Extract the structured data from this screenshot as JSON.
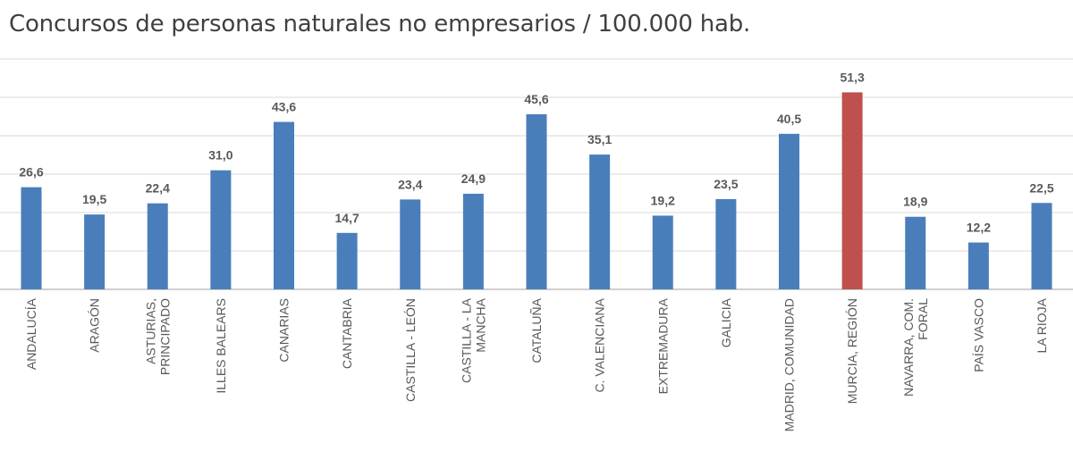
{
  "chart_data": {
    "type": "bar",
    "title": "Concursos de personas naturales no empresarios / 100.000 hab.",
    "categories": [
      [
        "ANDALUCÍA"
      ],
      [
        "ARAGÓN"
      ],
      [
        "ASTURIAS,",
        "PRINCIPADO"
      ],
      [
        "ILLES BALEARS"
      ],
      [
        "CANARIAS"
      ],
      [
        "CANTABRIA"
      ],
      [
        "CASTILLA - LEÓN"
      ],
      [
        "CASTILLA - LA",
        "MANCHA"
      ],
      [
        "CATALUÑA"
      ],
      [
        "C. VALENCIANA"
      ],
      [
        "EXTREMADURA"
      ],
      [
        "GALICIA"
      ],
      [
        "MADRID, COMUNIDAD"
      ],
      [
        "MURCIA, REGIÓN"
      ],
      [
        "NAVARRA, COM.",
        "FORAL"
      ],
      [
        "PAÍS VASCO"
      ],
      [
        "LA RIOJA"
      ]
    ],
    "values": [
      26.6,
      19.5,
      22.4,
      31.0,
      43.6,
      14.7,
      23.4,
      24.9,
      45.6,
      35.1,
      19.2,
      23.5,
      40.5,
      51.3,
      18.9,
      12.2,
      22.5
    ],
    "value_labels": [
      "26,6",
      "19,5",
      "22,4",
      "31,0",
      "43,6",
      "14,7",
      "23,4",
      "24,9",
      "45,6",
      "35,1",
      "19,2",
      "23,5",
      "40,5",
      "51,3",
      "18,9",
      "12,2",
      "22,5"
    ],
    "highlight_index": 13,
    "ylim": [
      0,
      60
    ],
    "grid": true,
    "colors": {
      "bar": "#4a7ebb",
      "highlight": "#c0504d",
      "grid": "#d9d9d9",
      "axis": "#bfbfbf",
      "text": "#595959"
    }
  }
}
